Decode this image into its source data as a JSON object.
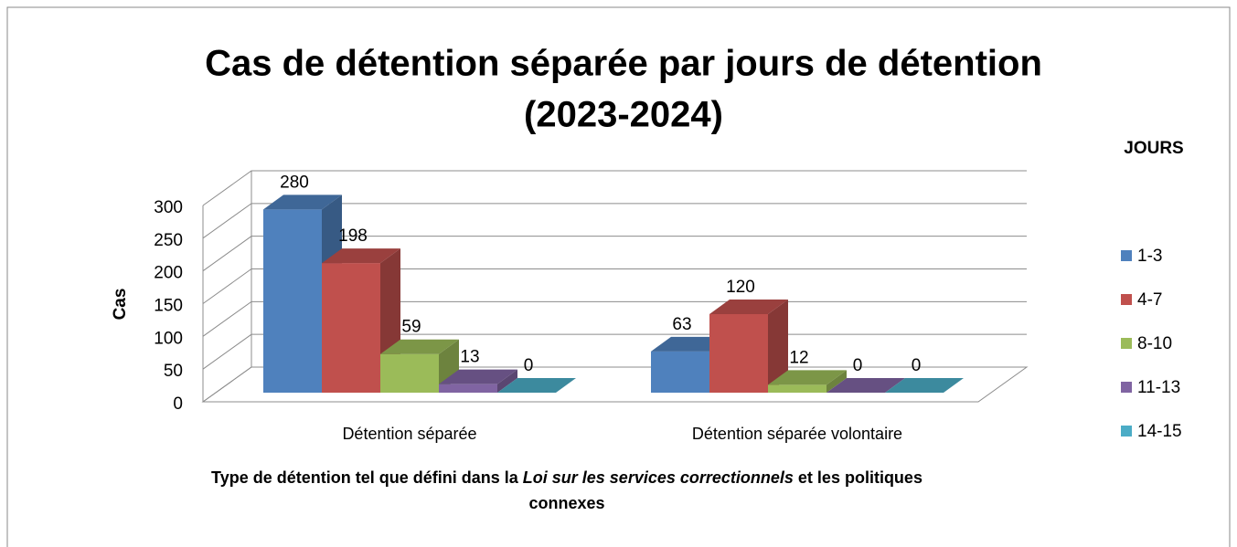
{
  "chart_data": {
    "type": "bar3d",
    "title": [
      "Cas de détention séparée par jours de détention",
      "(2023-2024)"
    ],
    "y_label": "Cas",
    "x_label": [
      "Type de détention tel que défini dans la",
      "Loi sur les services correctionnels",
      "et les politiques",
      "connexes"
    ],
    "legend_title": "JOURS",
    "legend": "right",
    "categories": [
      "Détention séparée",
      "Détention séparée volontaire"
    ],
    "series": [
      {
        "name": "1-3",
        "color": "#4f81bd",
        "values": [
          280,
          63
        ]
      },
      {
        "name": "4-7",
        "color": "#c0504d",
        "values": [
          198,
          120
        ]
      },
      {
        "name": "8-10",
        "color": "#9bbb59",
        "values": [
          59,
          12
        ]
      },
      {
        "name": "11-13",
        "color": "#8064a2",
        "values": [
          13,
          0
        ]
      },
      {
        "name": "14-15",
        "color": "#4bacc6",
        "values": [
          0,
          0
        ]
      }
    ],
    "ylim": [
      0,
      300
    ],
    "yticks": [
      0,
      50,
      100,
      150,
      200,
      250,
      300
    ],
    "grid": true
  }
}
